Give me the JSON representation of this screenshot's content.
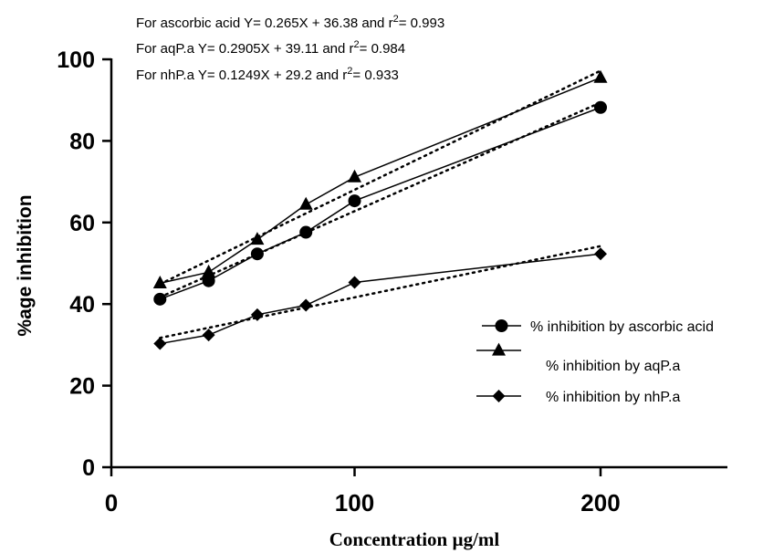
{
  "chart_data": {
    "type": "line",
    "title": "",
    "xlabel": "Concentration µg/ml",
    "ylabel": "%age inhibition",
    "x_tick_labels": [
      "0",
      "100",
      "200"
    ],
    "y_tick_labels": [
      "0",
      "20",
      "40",
      "60",
      "80",
      "100"
    ],
    "ylim": [
      0,
      100
    ],
    "x_scale": "linear with axis break (0 to 100, then 100 to 200 compressed)",
    "grid": false,
    "legend_position": "right",
    "annotations": [
      {
        "text": "For ascorbic acid Y= 0.265X + 36.38 and r",
        "sup": "2",
        "tail": "= 0.993"
      },
      {
        "text": "For aqP.a Y= 0.2905X + 39.11 and r",
        "sup": "2",
        "tail": "= 0.984"
      },
      {
        "text": "For nhP.a Y= 0.1249X + 29.2 and r",
        "sup": "2",
        "tail": "= 0.933"
      }
    ],
    "x": [
      20,
      40,
      60,
      80,
      100,
      200
    ],
    "series": [
      {
        "name": "% inhibition by ascorbic acid",
        "marker": "circle",
        "values": [
          41.2,
          45.7,
          52.3,
          57.6,
          65.3,
          88.2
        ]
      },
      {
        "name": "% inhibition by aqP.a",
        "marker": "triangle",
        "values": [
          45.1,
          47.8,
          55.8,
          64.4,
          71.1,
          95.5
        ]
      },
      {
        "name": "% inhibition by nhP.a",
        "marker": "diamond",
        "values": [
          30.3,
          32.4,
          37.4,
          39.7,
          45.3,
          52.3
        ]
      }
    ],
    "trendlines": [
      {
        "series": "% inhibition by ascorbic acid",
        "style": "dotted",
        "start": [
          20,
          41.7
        ],
        "end": [
          200,
          89.4
        ]
      },
      {
        "series": "% inhibition by aqP.a",
        "style": "dotted",
        "start": [
          20,
          44.9
        ],
        "end": [
          200,
          97.2
        ]
      },
      {
        "series": "% inhibition by nhP.a",
        "style": "dotted",
        "start": [
          20,
          31.7
        ],
        "end": [
          200,
          54.2
        ]
      }
    ]
  }
}
